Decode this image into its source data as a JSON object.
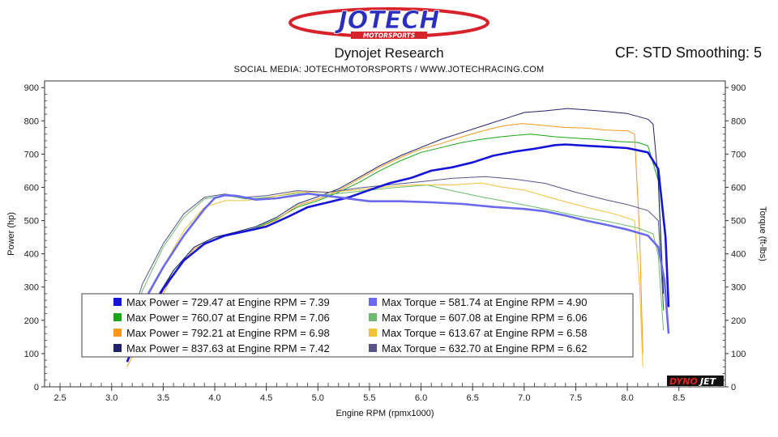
{
  "header": {
    "logo_text": "JOTECH",
    "logo_subtext": "MOTORSPORTS",
    "title": "Dynojet Research",
    "cf_text": "CF: STD Smoothing: 5",
    "social_text": "SOCIAL MEDIA: JOTECHMOTORSPORTS    /    WWW.JOTECHRACING.COM",
    "watermark_dyno": "DYNO",
    "watermark_jet": "JET"
  },
  "chart_data": {
    "type": "line",
    "xlabel": "Engine RPM (rpmx1000)",
    "ylabel_left": "Power (hp)",
    "ylabel_right": "Torque (ft-lbs)",
    "xlim": [
      2.35,
      8.95
    ],
    "ylim": [
      0,
      920
    ],
    "xticks": [
      2.5,
      3.0,
      3.5,
      4.0,
      4.5,
      5.0,
      5.5,
      6.0,
      6.5,
      7.0,
      7.5,
      8.0,
      8.5
    ],
    "yticks": [
      0,
      100,
      200,
      300,
      400,
      500,
      600,
      700,
      800,
      900
    ],
    "colors": {
      "blue": "#1515d8",
      "green": "#1aa51a",
      "orange": "#f39a1a",
      "navy": "#22226a",
      "lightblue": "#6a6af0",
      "lightgreen": "#6cbc6c",
      "yellow": "#f2c23a",
      "slate": "#55558c"
    },
    "series": [
      {
        "name": "Max Power = 729.47 at Engine RPM = 7.39",
        "metric": "power",
        "color": "#1515d8",
        "width": 2.6,
        "points": [
          [
            3.15,
            75
          ],
          [
            3.3,
            185
          ],
          [
            3.5,
            295
          ],
          [
            3.7,
            380
          ],
          [
            3.9,
            430
          ],
          [
            4.1,
            455
          ],
          [
            4.3,
            468
          ],
          [
            4.5,
            482
          ],
          [
            4.7,
            510
          ],
          [
            4.9,
            540
          ],
          [
            5.1,
            555
          ],
          [
            5.3,
            570
          ],
          [
            5.5,
            592
          ],
          [
            5.7,
            613
          ],
          [
            5.9,
            628
          ],
          [
            6.1,
            650
          ],
          [
            6.3,
            660
          ],
          [
            6.5,
            675
          ],
          [
            6.7,
            695
          ],
          [
            6.9,
            707
          ],
          [
            7.1,
            716
          ],
          [
            7.3,
            727
          ],
          [
            7.4,
            729
          ],
          [
            7.6,
            725
          ],
          [
            7.8,
            722
          ],
          [
            8.0,
            718
          ],
          [
            8.2,
            705
          ],
          [
            8.3,
            655
          ],
          [
            8.37,
            450
          ],
          [
            8.4,
            240
          ]
        ]
      },
      {
        "name": "Max Power = 760.07 at Engine RPM = 7.06",
        "metric": "power",
        "color": "#1aa51a",
        "width": 1,
        "points": [
          [
            3.15,
            80
          ],
          [
            3.4,
            240
          ],
          [
            3.6,
            350
          ],
          [
            3.8,
            420
          ],
          [
            4.0,
            450
          ],
          [
            4.2,
            462
          ],
          [
            4.4,
            478
          ],
          [
            4.6,
            505
          ],
          [
            4.8,
            540
          ],
          [
            5.0,
            560
          ],
          [
            5.2,
            585
          ],
          [
            5.4,
            615
          ],
          [
            5.6,
            650
          ],
          [
            5.8,
            680
          ],
          [
            6.0,
            705
          ],
          [
            6.2,
            720
          ],
          [
            6.4,
            735
          ],
          [
            6.6,
            745
          ],
          [
            6.8,
            753
          ],
          [
            7.06,
            760
          ],
          [
            7.3,
            752
          ],
          [
            7.5,
            748
          ],
          [
            7.7,
            744
          ],
          [
            7.9,
            738
          ],
          [
            8.1,
            735
          ],
          [
            8.2,
            725
          ],
          [
            8.3,
            620
          ],
          [
            8.35,
            230
          ]
        ]
      },
      {
        "name": "Max Power = 792.21 at Engine RPM = 6.98",
        "metric": "power",
        "color": "#f39a1a",
        "width": 1,
        "points": [
          [
            3.15,
            60
          ],
          [
            3.4,
            220
          ],
          [
            3.6,
            340
          ],
          [
            3.8,
            415
          ],
          [
            4.0,
            445
          ],
          [
            4.2,
            460
          ],
          [
            4.4,
            475
          ],
          [
            4.6,
            502
          ],
          [
            4.8,
            545
          ],
          [
            5.0,
            565
          ],
          [
            5.2,
            590
          ],
          [
            5.4,
            625
          ],
          [
            5.6,
            660
          ],
          [
            5.8,
            690
          ],
          [
            6.0,
            715
          ],
          [
            6.2,
            732
          ],
          [
            6.4,
            752
          ],
          [
            6.6,
            770
          ],
          [
            6.8,
            785
          ],
          [
            6.98,
            792
          ],
          [
            7.2,
            786
          ],
          [
            7.4,
            780
          ],
          [
            7.6,
            778
          ],
          [
            7.8,
            772
          ],
          [
            8.0,
            770
          ],
          [
            8.07,
            760
          ],
          [
            8.12,
            450
          ],
          [
            8.15,
            100
          ]
        ]
      },
      {
        "name": "Max Power = 837.63 at Engine RPM = 7.42",
        "metric": "power",
        "color": "#22226a",
        "width": 1,
        "points": [
          [
            3.15,
            90
          ],
          [
            3.4,
            250
          ],
          [
            3.6,
            350
          ],
          [
            3.8,
            420
          ],
          [
            4.0,
            450
          ],
          [
            4.2,
            465
          ],
          [
            4.4,
            482
          ],
          [
            4.6,
            510
          ],
          [
            4.8,
            550
          ],
          [
            5.0,
            572
          ],
          [
            5.2,
            595
          ],
          [
            5.4,
            630
          ],
          [
            5.6,
            665
          ],
          [
            5.8,
            695
          ],
          [
            6.0,
            720
          ],
          [
            6.2,
            745
          ],
          [
            6.4,
            765
          ],
          [
            6.6,
            785
          ],
          [
            6.8,
            805
          ],
          [
            7.0,
            825
          ],
          [
            7.2,
            830
          ],
          [
            7.42,
            837
          ],
          [
            7.6,
            833
          ],
          [
            7.8,
            828
          ],
          [
            8.0,
            822
          ],
          [
            8.2,
            805
          ],
          [
            8.25,
            790
          ],
          [
            8.3,
            620
          ],
          [
            8.35,
            280
          ]
        ]
      },
      {
        "name": "Max Torque = 581.74 at Engine RPM = 4.90",
        "metric": "torque",
        "color": "#6a6af0",
        "width": 2.6,
        "points": [
          [
            3.15,
            120
          ],
          [
            3.3,
            250
          ],
          [
            3.5,
            360
          ],
          [
            3.7,
            455
          ],
          [
            3.9,
            535
          ],
          [
            4.0,
            568
          ],
          [
            4.1,
            576
          ],
          [
            4.2,
            575
          ],
          [
            4.4,
            563
          ],
          [
            4.6,
            567
          ],
          [
            4.9,
            581
          ],
          [
            5.2,
            570
          ],
          [
            5.5,
            558
          ],
          [
            5.8,
            558
          ],
          [
            6.1,
            555
          ],
          [
            6.4,
            550
          ],
          [
            6.7,
            541
          ],
          [
            7.0,
            535
          ],
          [
            7.2,
            528
          ],
          [
            7.4,
            515
          ],
          [
            7.6,
            500
          ],
          [
            7.8,
            487
          ],
          [
            8.0,
            473
          ],
          [
            8.2,
            455
          ],
          [
            8.3,
            420
          ],
          [
            8.36,
            320
          ],
          [
            8.4,
            160
          ]
        ]
      },
      {
        "name": "Max Torque = 607.08 at Engine RPM = 6.06",
        "metric": "torque",
        "color": "#6cbc6c",
        "width": 1,
        "points": [
          [
            3.15,
            150
          ],
          [
            3.3,
            290
          ],
          [
            3.5,
            420
          ],
          [
            3.7,
            510
          ],
          [
            3.9,
            565
          ],
          [
            4.1,
            576
          ],
          [
            4.3,
            565
          ],
          [
            4.5,
            570
          ],
          [
            4.8,
            582
          ],
          [
            5.1,
            578
          ],
          [
            5.4,
            588
          ],
          [
            5.7,
            598
          ],
          [
            6.06,
            607
          ],
          [
            6.3,
            590
          ],
          [
            6.6,
            570
          ],
          [
            6.9,
            553
          ],
          [
            7.2,
            535
          ],
          [
            7.5,
            515
          ],
          [
            7.8,
            498
          ],
          [
            8.1,
            478
          ],
          [
            8.25,
            460
          ],
          [
            8.3,
            395
          ],
          [
            8.35,
            170
          ]
        ]
      },
      {
        "name": "Max Torque = 613.67 at Engine RPM = 6.58",
        "metric": "torque",
        "color": "#f2c23a",
        "width": 1,
        "points": [
          [
            3.15,
            100
          ],
          [
            3.3,
            240
          ],
          [
            3.5,
            360
          ],
          [
            3.7,
            470
          ],
          [
            3.9,
            540
          ],
          [
            4.1,
            560
          ],
          [
            4.3,
            560
          ],
          [
            4.5,
            568
          ],
          [
            4.8,
            586
          ],
          [
            5.1,
            585
          ],
          [
            5.4,
            593
          ],
          [
            5.7,
            603
          ],
          [
            6.0,
            608
          ],
          [
            6.3,
            607
          ],
          [
            6.58,
            613
          ],
          [
            6.8,
            600
          ],
          [
            7.0,
            592
          ],
          [
            7.3,
            565
          ],
          [
            7.6,
            540
          ],
          [
            7.9,
            518
          ],
          [
            8.07,
            500
          ],
          [
            8.12,
            300
          ],
          [
            8.15,
            60
          ]
        ]
      },
      {
        "name": "Max Torque = 632.70 at Engine RPM = 6.62",
        "metric": "torque",
        "color": "#55558c",
        "width": 1,
        "points": [
          [
            3.15,
            170
          ],
          [
            3.3,
            310
          ],
          [
            3.5,
            430
          ],
          [
            3.7,
            520
          ],
          [
            3.9,
            570
          ],
          [
            4.1,
            580
          ],
          [
            4.3,
            570
          ],
          [
            4.5,
            575
          ],
          [
            4.8,
            590
          ],
          [
            5.1,
            585
          ],
          [
            5.4,
            598
          ],
          [
            5.7,
            608
          ],
          [
            6.0,
            617
          ],
          [
            6.3,
            627
          ],
          [
            6.62,
            632
          ],
          [
            6.9,
            625
          ],
          [
            7.2,
            612
          ],
          [
            7.5,
            585
          ],
          [
            7.8,
            562
          ],
          [
            8.0,
            548
          ],
          [
            8.2,
            530
          ],
          [
            8.3,
            500
          ],
          [
            8.35,
            240
          ]
        ]
      }
    ],
    "legend_order": [
      0,
      4,
      1,
      5,
      2,
      6,
      3,
      7
    ],
    "legend_position": "bottom-center",
    "grid": false
  }
}
